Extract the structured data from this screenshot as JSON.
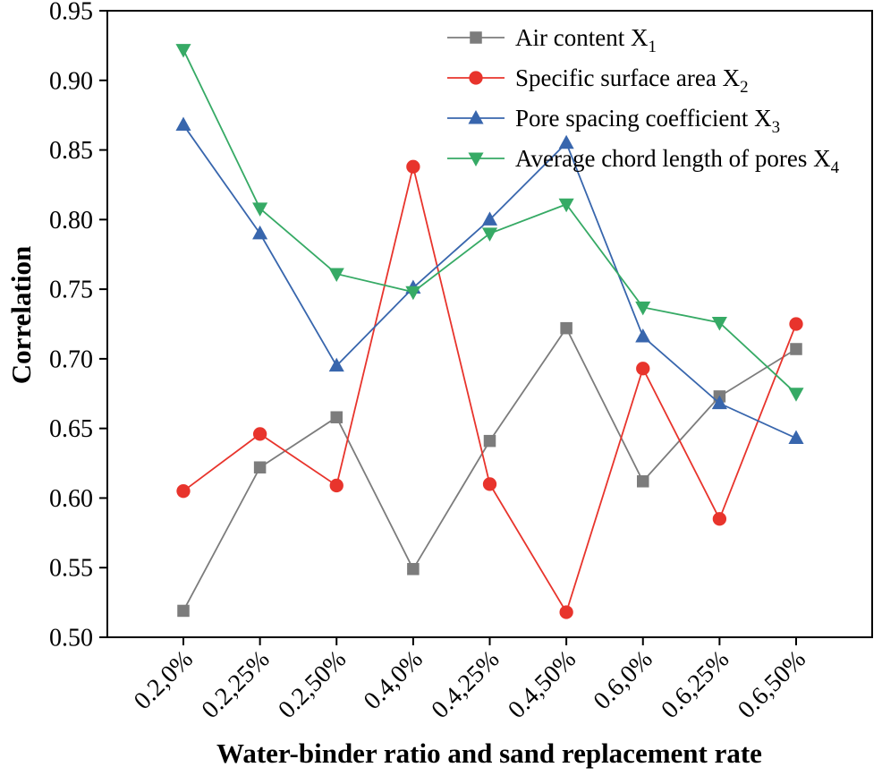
{
  "chart_data": {
    "type": "line",
    "title": "",
    "xlabel": "Water-binder ratio and sand replacement rate",
    "ylabel": "Correlation",
    "ylim": [
      0.5,
      0.95
    ],
    "ytick_step": 0.05,
    "grid": false,
    "legend_position": "top-center-inside",
    "categories": [
      "0.2,0%",
      "0.2,25%",
      "0.2,50%",
      "0.4,0%",
      "0.4,25%",
      "0.4,50%",
      "0.6,0%",
      "0.6,25%",
      "0.6,50%"
    ],
    "series": [
      {
        "name": "Air content X",
        "name_sub": "1",
        "marker": "square",
        "color": "#7c7c7c",
        "values": [
          0.519,
          0.622,
          0.658,
          0.549,
          0.641,
          0.722,
          0.612,
          0.673,
          0.707
        ]
      },
      {
        "name": "Specific surface area X",
        "name_sub": "2",
        "marker": "circle",
        "color": "#e8342c",
        "values": [
          0.605,
          0.646,
          0.609,
          0.838,
          0.61,
          0.518,
          0.693,
          0.585,
          0.725
        ]
      },
      {
        "name": "Pore spacing coefficient X",
        "name_sub": "3",
        "marker": "triangle-up",
        "color": "#3866ad",
        "values": [
          0.868,
          0.79,
          0.695,
          0.751,
          0.8,
          0.855,
          0.716,
          0.668,
          0.643
        ]
      },
      {
        "name": "Average chord length of pores X",
        "name_sub": "4",
        "marker": "triangle-down",
        "color": "#36aa65",
        "values": [
          0.922,
          0.808,
          0.761,
          0.748,
          0.79,
          0.811,
          0.737,
          0.726,
          0.675
        ]
      }
    ]
  }
}
